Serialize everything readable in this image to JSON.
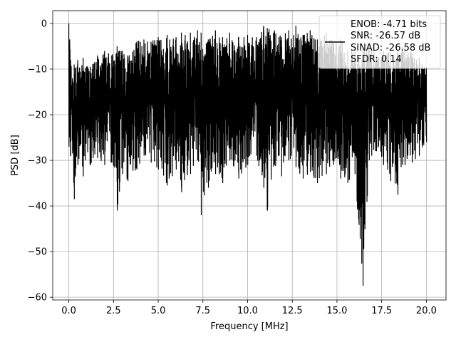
{
  "chart_data": {
    "type": "line",
    "title": "",
    "xlabel": "Frequency [MHz]",
    "ylabel": "PSD [dB]",
    "xlim": [
      -0.9,
      21.1
    ],
    "ylim": [
      -60.6,
      2.8
    ],
    "xticks": [
      0.0,
      2.5,
      5.0,
      7.5,
      10.0,
      12.5,
      15.0,
      17.5,
      20.0
    ],
    "xtick_labels": [
      "0.0",
      "2.5",
      "5.0",
      "7.5",
      "10.0",
      "12.5",
      "15.0",
      "17.5",
      "20.0"
    ],
    "yticks": [
      0,
      -10,
      -20,
      -30,
      -40,
      -50,
      -60
    ],
    "ytick_labels": [
      "0",
      "−10",
      "−20",
      "−30",
      "−40",
      "−50",
      "−60"
    ],
    "grid": true,
    "legend_placement": "top-right",
    "legend_entries": [
      "ENOB: -4.71 bits",
      "SNR: -26.57 dB",
      "SINAD: -26.58 dB",
      "SFDR: 0.14"
    ],
    "series_color": "#000000",
    "series": [
      {
        "x": [
          0.0,
          0.05,
          0.1,
          0.2,
          0.3,
          0.5,
          0.8,
          1.2,
          1.6,
          2.0,
          2.4,
          2.7,
          3.0,
          3.3,
          3.8,
          4.2,
          4.6,
          5.0,
          5.5,
          6.0,
          6.3,
          6.8,
          7.2,
          7.4,
          7.8,
          8.2,
          8.6,
          9.0,
          9.5,
          10.0,
          10.5,
          10.9,
          11.1,
          11.5,
          11.9,
          12.3,
          12.7,
          13.1,
          13.5,
          13.9,
          14.4,
          14.8,
          15.2,
          15.6,
          16.0,
          16.45,
          16.8,
          17.2,
          17.6,
          18.0,
          18.4,
          18.8,
          19.2,
          19.6,
          20.0
        ],
        "upper": [
          0.0,
          -3.5,
          -8.0,
          -12.0,
          -9.0,
          -8.0,
          -7.5,
          -9.5,
          -7.0,
          -6.0,
          -7.0,
          -5.0,
          -6.0,
          -7.0,
          -4.0,
          -3.5,
          -4.0,
          -3.0,
          -2.5,
          -3.0,
          -2.0,
          -2.0,
          -1.5,
          -2.0,
          -3.5,
          -1.5,
          -3.0,
          -2.0,
          -3.0,
          -2.5,
          -3.0,
          -0.5,
          -1.0,
          -1.5,
          -3.0,
          -1.5,
          -0.5,
          -2.5,
          -1.5,
          -3.5,
          -2.0,
          -4.0,
          -3.5,
          -6.0,
          -5.0,
          -5.5,
          -4.5,
          -7.0,
          -6.0,
          -6.5,
          -5.5,
          -5.0,
          -6.5,
          -7.5,
          -9.5
        ],
        "lower": [
          -27.0,
          -24.0,
          -29.0,
          -28.5,
          -38.5,
          -31.0,
          -33.5,
          -31.0,
          -29.5,
          -31.0,
          -30.5,
          -41.0,
          -33.0,
          -34.5,
          -32.0,
          -29.0,
          -30.5,
          -32.0,
          -35.5,
          -32.0,
          -37.0,
          -33.0,
          -30.0,
          -42.0,
          -36.0,
          -33.0,
          -35.0,
          -30.0,
          -34.0,
          -31.0,
          -29.0,
          -36.0,
          -41.0,
          -31.0,
          -33.5,
          -30.0,
          -31.5,
          -34.0,
          -32.5,
          -35.0,
          -33.0,
          -31.0,
          -34.0,
          -35.0,
          -33.0,
          -57.5,
          -30.0,
          -28.0,
          -31.0,
          -34.5,
          -37.5,
          -31.0,
          -30.5,
          -29.0,
          -26.0
        ]
      }
    ]
  }
}
